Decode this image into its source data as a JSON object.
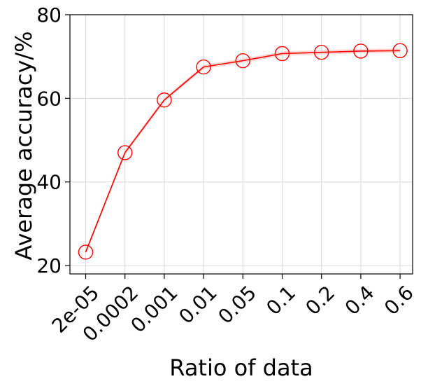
{
  "chart_data": {
    "type": "line",
    "title": "",
    "xlabel": "Ratio of data",
    "ylabel": "Average accuracy/%",
    "categories": [
      "2e-05",
      "0.0002",
      "0.001",
      "0.01",
      "0.05",
      "0.1",
      "0.2",
      "0.4",
      "0.6"
    ],
    "series": [
      {
        "values": [
          23.2,
          47.0,
          59.6,
          67.5,
          69.0,
          70.7,
          71.0,
          71.3,
          71.4
        ],
        "color": "#ff0000",
        "marker": "open-circle",
        "band_color": "#ffcccc"
      }
    ],
    "ylim": [
      18,
      80
    ],
    "yticks": [
      20,
      40,
      60,
      80
    ],
    "grid": true,
    "legend": "none"
  }
}
